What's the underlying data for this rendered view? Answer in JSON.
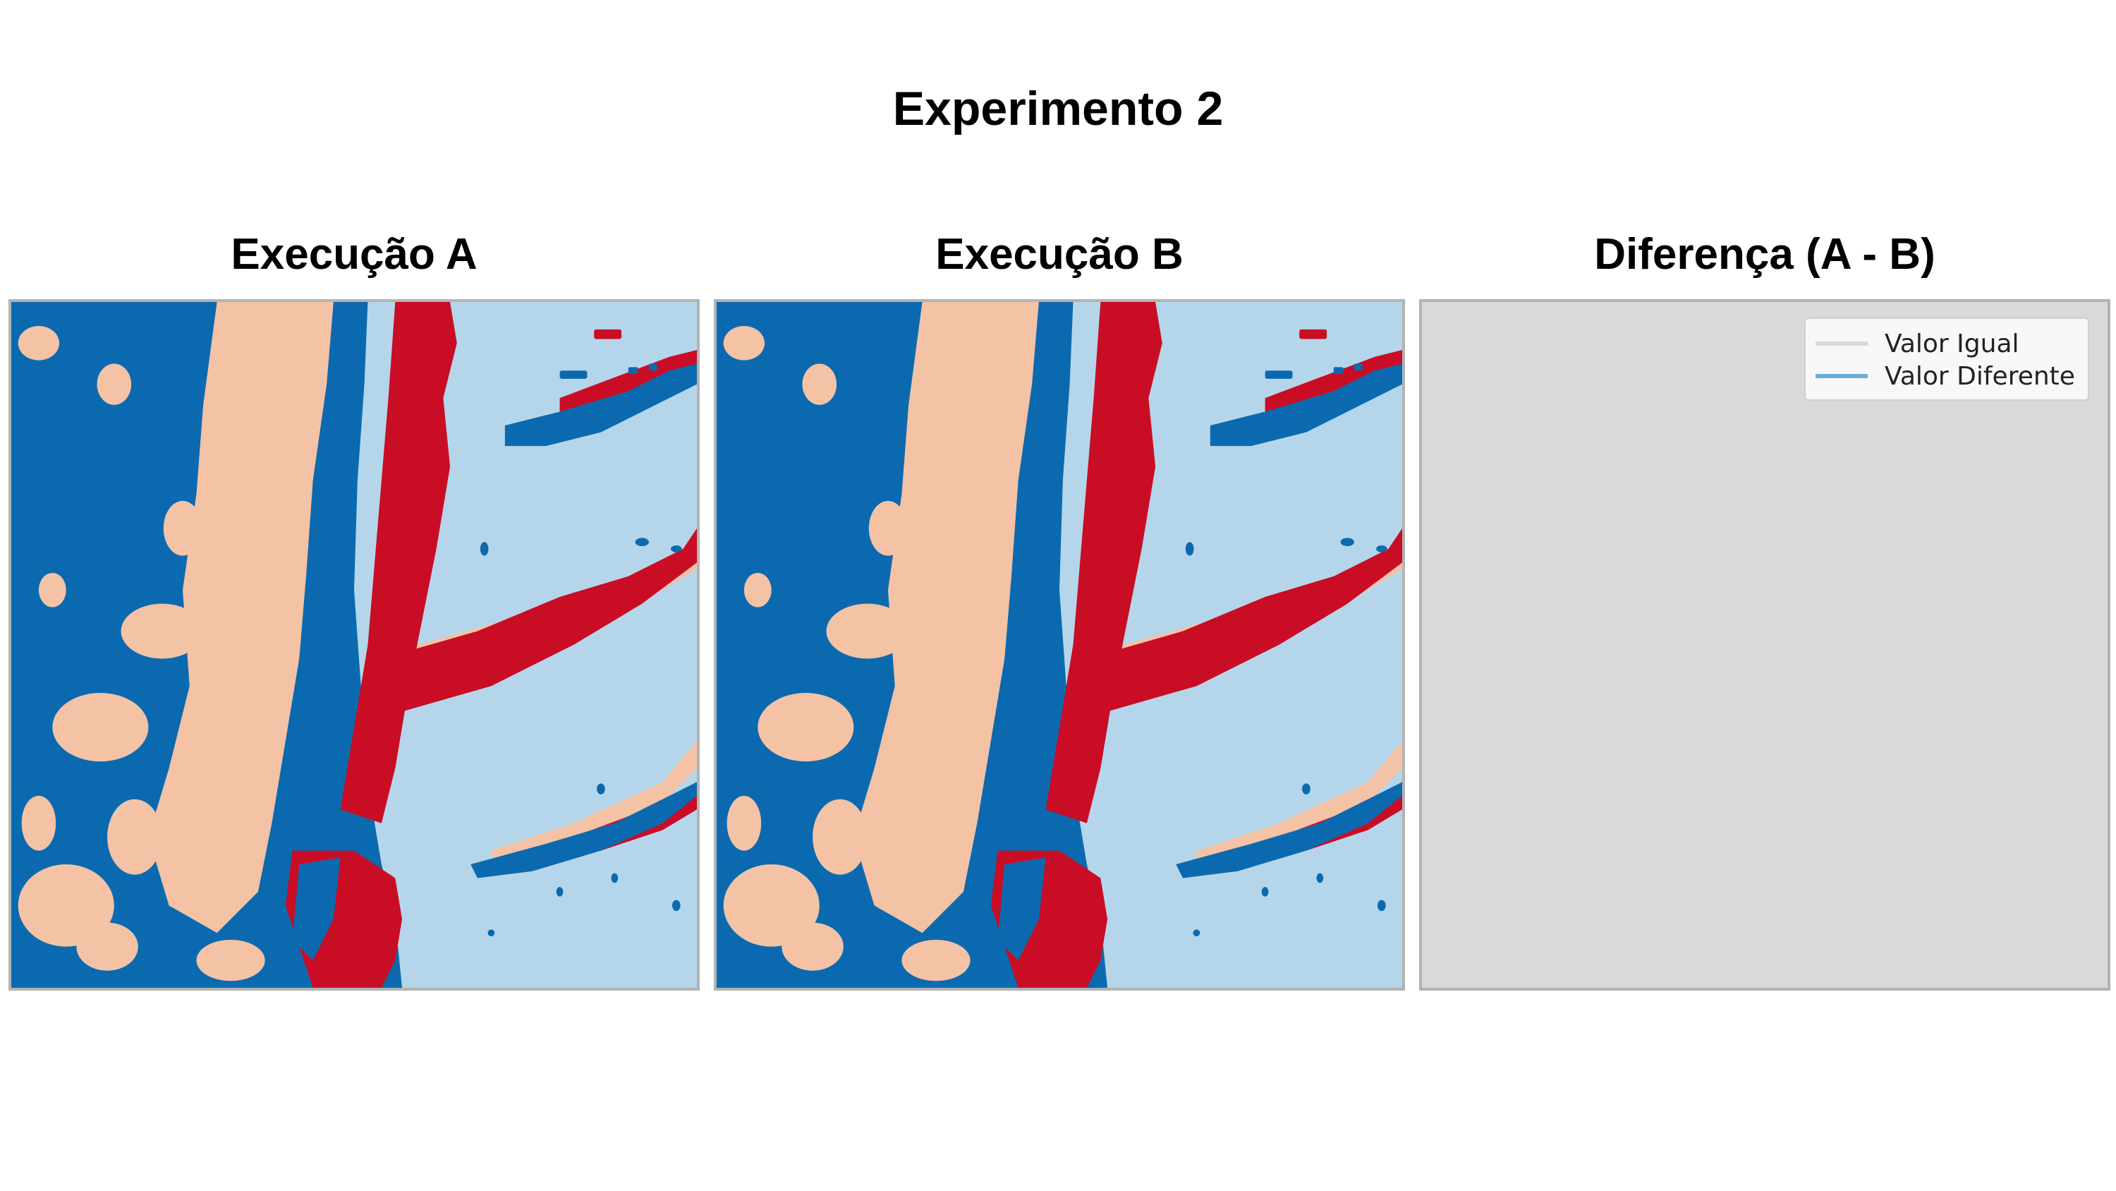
{
  "figure": {
    "title": "Experimento 2"
  },
  "panels": [
    {
      "title": "Execução A"
    },
    {
      "title": "Execução B"
    },
    {
      "title": "Diferença (A - B)"
    }
  ],
  "legend": {
    "items": [
      {
        "label": "Valor Igual",
        "color": "#d9d9d9"
      },
      {
        "label": "Valor Diferente",
        "color": "#6aaed6"
      }
    ]
  },
  "palette": {
    "class_1": "#0b6aaf",
    "class_2": "#f4c2a5",
    "class_3": "#c90d25",
    "class_4": "#b5d6ea",
    "difference_equal": "#d9d9d9",
    "difference_changed": "#6aaed6"
  },
  "difference_summary": {
    "changed_pixels": 0
  }
}
